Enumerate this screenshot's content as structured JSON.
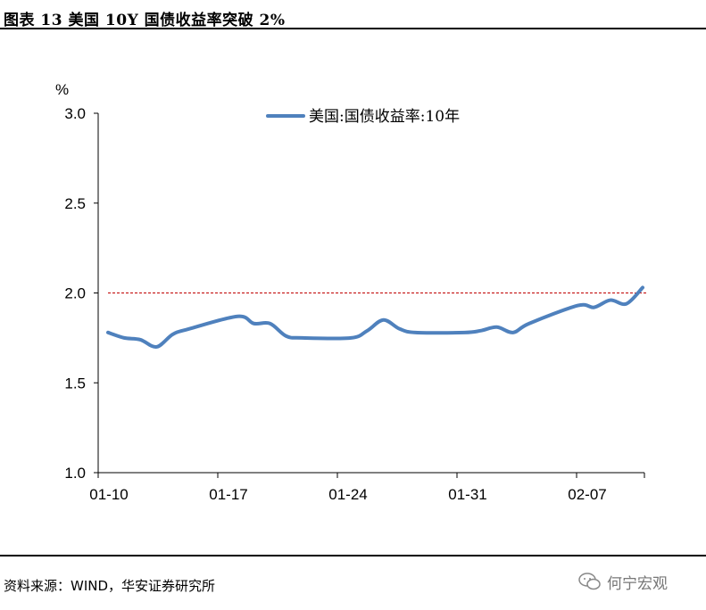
{
  "header": {
    "title": "图表 13  美国 10Y 国债收益率突破 2%"
  },
  "footer": {
    "source": "资料来源：WIND，华安证券研究所",
    "watermark": "何宁宏观"
  },
  "chart_data": {
    "type": "line",
    "title": "",
    "ylabel": "%",
    "xlabel": "",
    "ylim": [
      1.0,
      3.0
    ],
    "yticks": [
      "3.0",
      "2.5",
      "2.0",
      "1.5",
      "1.0"
    ],
    "xticks": [
      "01-10",
      "01-17",
      "01-24",
      "01-31",
      "02-07"
    ],
    "legend": {
      "position": "top-center",
      "label": "美国:国债收益率:10年"
    },
    "reference_line": {
      "y": 2.0,
      "style": "dashed",
      "color": "#c00000"
    },
    "series": [
      {
        "name": "美国:国债收益率:10年",
        "color": "#4f81bd",
        "x": [
          "01-10",
          "01-11",
          "01-12",
          "01-13",
          "01-14",
          "01-15",
          "01-18",
          "01-19",
          "01-20",
          "01-21",
          "01-22",
          "01-25",
          "01-26",
          "01-27",
          "01-28",
          "01-29",
          "02-01",
          "02-02",
          "02-03",
          "02-04",
          "02-05",
          "02-08",
          "02-09",
          "02-10",
          "02-11",
          "02-12"
        ],
        "values": [
          1.78,
          1.75,
          1.74,
          1.7,
          1.77,
          1.8,
          1.87,
          1.83,
          1.83,
          1.76,
          1.75,
          1.75,
          1.79,
          1.85,
          1.8,
          1.78,
          1.78,
          1.79,
          1.81,
          1.78,
          1.83,
          1.93,
          1.92,
          1.96,
          1.94,
          2.03
        ]
      }
    ]
  },
  "colors": {
    "series": "#4f81bd",
    "reference": "#c00000",
    "axis": "#000000"
  }
}
